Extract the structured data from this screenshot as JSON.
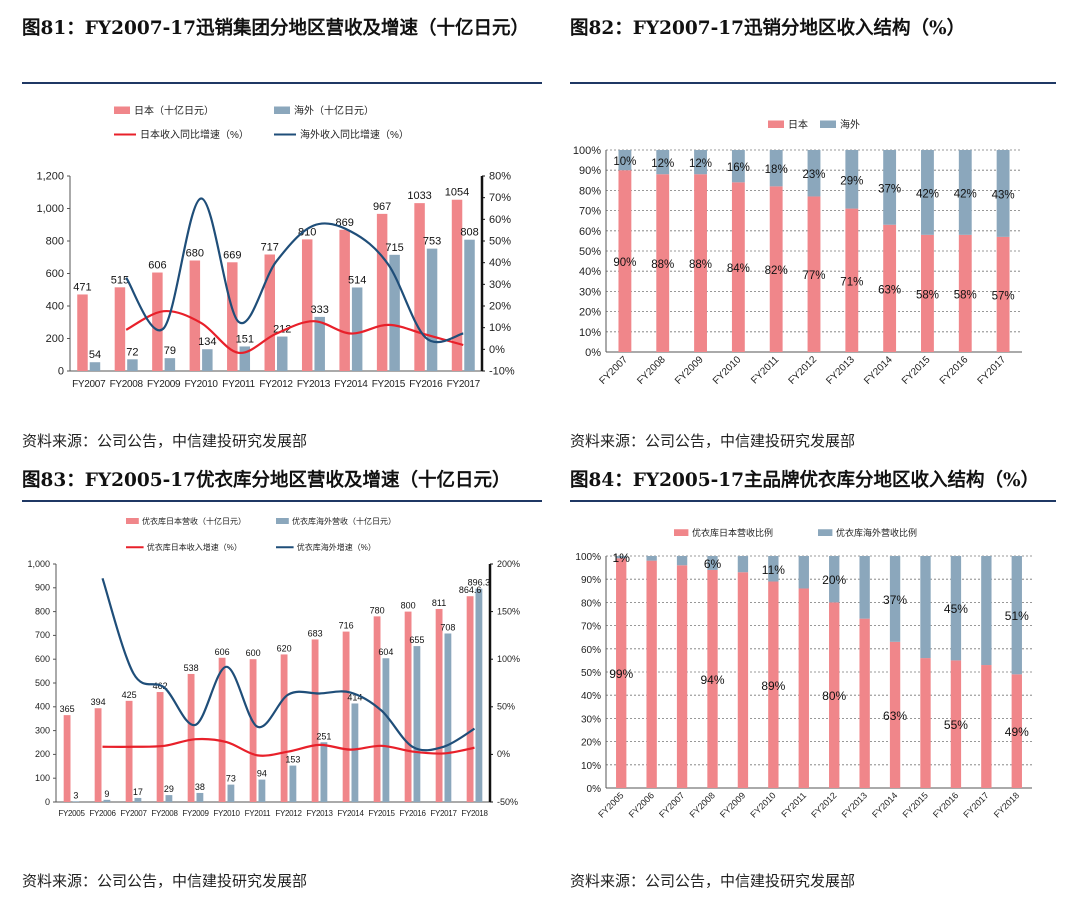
{
  "panels": [
    {
      "title": "图81：FY2007-17迅销集团分地区营收及增速（十亿日元）",
      "source": "资料来源：公司公告，中信建投研究发展部"
    },
    {
      "title": "图82：FY2007-17迅销分地区收入结构（%）",
      "source": "资料来源：公司公告，中信建投研究发展部"
    },
    {
      "title": "图83：FY2005-17优衣库分地区营收及增速（十亿日元）",
      "source": "资料来源：公司公告，中信建投研究发展部"
    },
    {
      "title": "图84：FY2005-17主品牌优衣库分地区收入结构（%）",
      "source": "资料来源：公司公告，中信建投研究发展部"
    }
  ],
  "colors": {
    "pink": "#f0868a",
    "blue": "#8ba7bc",
    "red": "#e8202a",
    "navy": "#1f4e79",
    "grid": "#bfbfbf"
  },
  "chart_data": [
    {
      "type": "bar",
      "categories": [
        "FY2007",
        "FY2008",
        "FY2009",
        "FY2010",
        "FY2011",
        "FY2012",
        "FY2013",
        "FY2014",
        "FY2015",
        "FY2016",
        "FY2017"
      ],
      "series": [
        {
          "name": "日本（十亿日元）",
          "values": [
            471,
            515,
            606,
            680,
            669,
            717,
            810,
            869,
            967,
            1033,
            1054
          ]
        },
        {
          "name": "海外（十亿日元）",
          "values": [
            54,
            72,
            79,
            134,
            151,
            212,
            333,
            514,
            715,
            753,
            808
          ]
        }
      ],
      "line_series": [
        {
          "name": "日本收入同比增速（%）",
          "values": [
            null,
            9,
            17.6,
            12.2,
            -1.6,
            7.2,
            13,
            7.3,
            11.3,
            6.8,
            2
          ]
        },
        {
          "name": "海外收入同比增速（%）",
          "values": [
            null,
            33,
            9.7,
            69.6,
            12.7,
            40.4,
            57.1,
            54.4,
            39.1,
            5.3,
            7.3
          ]
        }
      ],
      "yticks_left": [
        "0",
        "200",
        "400",
        "600",
        "800",
        "1,000",
        "1,200"
      ],
      "yticks_right": [
        "-10%",
        "0%",
        "10%",
        "20%",
        "30%",
        "40%",
        "50%",
        "60%",
        "70%",
        "80%"
      ],
      "ylim_left": [
        0,
        1200
      ],
      "ylim_right": [
        -10,
        80
      ]
    },
    {
      "type": "bar",
      "stacked": true,
      "categories": [
        "FY2007",
        "FY2008",
        "FY2009",
        "FY2010",
        "FY2011",
        "FY2012",
        "FY2013",
        "FY2014",
        "FY2015",
        "FY2016",
        "FY2017"
      ],
      "series": [
        {
          "name": "日本",
          "values": [
            90,
            88,
            88,
            84,
            82,
            77,
            71,
            63,
            58,
            58,
            57
          ],
          "labels": [
            "90%",
            "88%",
            "88%",
            "84%",
            "82%",
            "77%",
            "71%",
            "63%",
            "58%",
            "58%",
            "57%"
          ]
        },
        {
          "name": "海外",
          "values": [
            10,
            12,
            12,
            16,
            18,
            23,
            29,
            37,
            42,
            42,
            43
          ],
          "labels": [
            "10%",
            "12%",
            "12%",
            "16%",
            "18%",
            "23%",
            "29%",
            "37%",
            "42%",
            "42%",
            "43%"
          ]
        }
      ],
      "yticks": [
        "0%",
        "10%",
        "20%",
        "30%",
        "40%",
        "50%",
        "60%",
        "70%",
        "80%",
        "90%",
        "100%"
      ]
    },
    {
      "type": "bar",
      "categories": [
        "FY2005",
        "FY2006",
        "FY2007",
        "FY2008",
        "FY2009",
        "FY2010",
        "FY2011",
        "FY2012",
        "FY2013",
        "FY2014",
        "FY2015",
        "FY2016",
        "FY2017",
        "FY2018"
      ],
      "series": [
        {
          "name": "优衣库日本营收（十亿日元）",
          "values": [
            365,
            394,
            425,
            462,
            538,
            606,
            600,
            620,
            683,
            716,
            780,
            800,
            811,
            864.6
          ],
          "labels": [
            "365",
            "394",
            "425",
            "462",
            "538",
            "606",
            "600",
            "620",
            "683",
            "716",
            "780",
            "800",
            "811",
            "864.6"
          ]
        },
        {
          "name": "优衣库海外营收（十亿日元）",
          "values": [
            3,
            9,
            17,
            29,
            38,
            73,
            94,
            153,
            251,
            414,
            604,
            655,
            708,
            896.3
          ],
          "labels": [
            "3",
            "9",
            "17",
            "29",
            "38",
            "73",
            "94",
            "153",
            "251",
            "414",
            "604",
            "655",
            "708",
            "896.3"
          ]
        }
      ],
      "line_series": [
        {
          "name": "优衣库日本收入增速（%）",
          "values": [
            null,
            8,
            8,
            9,
            16,
            13,
            -1,
            3,
            10,
            5,
            9,
            3,
            1,
            7
          ]
        },
        {
          "name": "优衣库海外增速（%）",
          "values": [
            null,
            185,
            85,
            70,
            31,
            92,
            29,
            63,
            64,
            65,
            46,
            8,
            8,
            27
          ]
        }
      ],
      "yticks_left": [
        "0",
        "100",
        "200",
        "300",
        "400",
        "500",
        "600",
        "700",
        "800",
        "900",
        "1,000"
      ],
      "yticks_right": [
        "-50%",
        "0%",
        "50%",
        "100%",
        "150%",
        "200%"
      ],
      "ylim_left": [
        0,
        1000
      ],
      "ylim_right": [
        -50,
        200
      ]
    },
    {
      "type": "bar",
      "stacked": true,
      "categories": [
        "FY2005",
        "FY2006",
        "FY2007",
        "FY2008",
        "FY2009",
        "FY2010",
        "FY2011",
        "FY2012",
        "FY2013",
        "FY2014",
        "FY2015",
        "FY2016",
        "FY2017",
        "FY2018"
      ],
      "series": [
        {
          "name": "优衣库日本营收比例",
          "values": [
            99,
            98,
            96,
            94,
            93,
            89,
            86,
            80,
            73,
            63,
            56,
            55,
            53,
            49
          ],
          "labels": [
            "99%",
            "",
            "",
            "94%",
            "",
            "89%",
            "",
            "80%",
            "",
            "63%",
            "",
            "55%",
            "",
            "49%"
          ]
        },
        {
          "name": "优衣库海外营收比例",
          "values": [
            1,
            2,
            4,
            6,
            7,
            11,
            14,
            20,
            27,
            37,
            44,
            45,
            47,
            51
          ],
          "labels": [
            "1%",
            "",
            "",
            "6%",
            "",
            "11%",
            "",
            "20%",
            "",
            "37%",
            "",
            "45%",
            "",
            "51%"
          ]
        }
      ],
      "yticks": [
        "0%",
        "10%",
        "20%",
        "30%",
        "40%",
        "50%",
        "60%",
        "70%",
        "80%",
        "90%",
        "100%"
      ]
    }
  ]
}
